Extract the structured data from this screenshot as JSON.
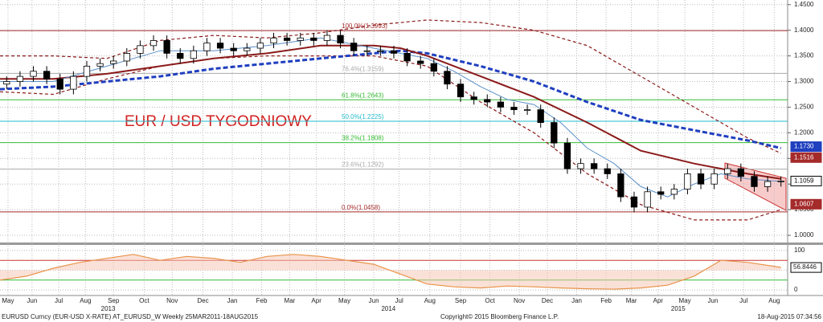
{
  "chart_data": {
    "type": "candlestick",
    "annotation": "EUR / USD TYGODNIOWY",
    "grid": true,
    "xlim": [
      0,
      59
    ],
    "xticks": [
      {
        "value": 0.6,
        "label": "May"
      },
      {
        "value": 2.4,
        "label": "Jun"
      },
      {
        "value": 4.4,
        "label": "Jul"
      },
      {
        "value": 6.4,
        "label": "Aug"
      },
      {
        "value": 8.5,
        "label": "Sep"
      },
      {
        "value": 10.8,
        "label": "Oct"
      },
      {
        "value": 12.9,
        "label": "Nov"
      },
      {
        "value": 15.2,
        "label": "Dec"
      },
      {
        "value": 17.4,
        "label": "Jan"
      },
      {
        "value": 19.6,
        "label": "Feb"
      },
      {
        "value": 21.7,
        "label": "Mar"
      },
      {
        "value": 23.7,
        "label": "Apr"
      },
      {
        "value": 25.8,
        "label": "May"
      },
      {
        "value": 28.0,
        "label": "Jun"
      },
      {
        "value": 29.9,
        "label": "Jul"
      },
      {
        "value": 32.2,
        "label": "Aug"
      },
      {
        "value": 34.5,
        "label": "Sep"
      },
      {
        "value": 36.7,
        "label": "Oct"
      },
      {
        "value": 38.9,
        "label": "Nov"
      },
      {
        "value": 41.0,
        "label": "Dec"
      },
      {
        "value": 43.2,
        "label": "Jan"
      },
      {
        "value": 45.4,
        "label": "Feb"
      },
      {
        "value": 47.3,
        "label": "Mar"
      },
      {
        "value": 49.3,
        "label": "Apr"
      },
      {
        "value": 51.3,
        "label": "May"
      },
      {
        "value": 53.4,
        "label": "Jun"
      },
      {
        "value": 55.7,
        "label": "Jul"
      },
      {
        "value": 58.0,
        "label": "Aug"
      }
    ],
    "year_ticks": [
      {
        "value": 8.1,
        "label": "2013"
      },
      {
        "value": 29.1,
        "label": "2014"
      },
      {
        "value": 50.8,
        "label": "2015"
      }
    ],
    "ylim": [
      0.986,
      1.459
    ],
    "yticks": [
      {
        "value": 1.45,
        "label": "1.4500"
      },
      {
        "value": 1.4,
        "label": "1.4000"
      },
      {
        "value": 1.35,
        "label": "1.3500"
      },
      {
        "value": 1.3,
        "label": "1.3000"
      },
      {
        "value": 1.25,
        "label": "1.2500"
      },
      {
        "value": 1.2,
        "label": "1.2000"
      },
      {
        "value": 1.15,
        "label": "1.1500"
      },
      {
        "value": 1.1,
        "label": "1.1000"
      },
      {
        "value": 1.05,
        "label": "1.0500"
      },
      {
        "value": 1.0,
        "label": "1.0000"
      }
    ],
    "up_color": "#ffffff",
    "down_color": "#000000",
    "candles": {
      "open": [
        1.295,
        1.3,
        1.31,
        1.32,
        1.305,
        1.285,
        1.31,
        1.33,
        1.335,
        1.34,
        1.355,
        1.37,
        1.38,
        1.355,
        1.345,
        1.36,
        1.375,
        1.365,
        1.36,
        1.365,
        1.375,
        1.385,
        1.38,
        1.385,
        1.38,
        1.39,
        1.375,
        1.36,
        1.36,
        1.36,
        1.355,
        1.34,
        1.335,
        1.32,
        1.295,
        1.27,
        1.265,
        1.26,
        1.25,
        1.245,
        1.245,
        1.22,
        1.18,
        1.13,
        1.14,
        1.13,
        1.12,
        1.075,
        1.055,
        1.085,
        1.08,
        1.09,
        1.12,
        1.1,
        1.12,
        1.13,
        1.115,
        1.095,
        1.105
      ],
      "high": [
        1.31,
        1.32,
        1.33,
        1.33,
        1.315,
        1.32,
        1.34,
        1.345,
        1.35,
        1.365,
        1.38,
        1.39,
        1.39,
        1.365,
        1.37,
        1.385,
        1.385,
        1.375,
        1.375,
        1.385,
        1.395,
        1.395,
        1.395,
        1.395,
        1.4,
        1.4,
        1.385,
        1.37,
        1.37,
        1.37,
        1.365,
        1.35,
        1.345,
        1.33,
        1.305,
        1.28,
        1.275,
        1.27,
        1.26,
        1.255,
        1.255,
        1.23,
        1.19,
        1.15,
        1.15,
        1.14,
        1.13,
        1.085,
        1.095,
        1.095,
        1.1,
        1.13,
        1.13,
        1.13,
        1.14,
        1.14,
        1.125,
        1.115,
        1.115
      ],
      "low": [
        1.285,
        1.29,
        1.3,
        1.295,
        1.275,
        1.275,
        1.3,
        1.32,
        1.325,
        1.33,
        1.345,
        1.36,
        1.345,
        1.335,
        1.335,
        1.35,
        1.355,
        1.35,
        1.35,
        1.355,
        1.365,
        1.37,
        1.37,
        1.37,
        1.37,
        1.365,
        1.35,
        1.35,
        1.35,
        1.345,
        1.33,
        1.325,
        1.31,
        1.285,
        1.26,
        1.255,
        1.25,
        1.24,
        1.235,
        1.235,
        1.21,
        1.17,
        1.12,
        1.12,
        1.12,
        1.11,
        1.065,
        1.045,
        1.045,
        1.07,
        1.07,
        1.08,
        1.09,
        1.09,
        1.11,
        1.105,
        1.085,
        1.085,
        1.095
      ],
      "close": [
        1.3,
        1.31,
        1.32,
        1.305,
        1.285,
        1.31,
        1.33,
        1.335,
        1.34,
        1.355,
        1.37,
        1.38,
        1.355,
        1.345,
        1.36,
        1.375,
        1.365,
        1.36,
        1.365,
        1.375,
        1.385,
        1.38,
        1.385,
        1.38,
        1.39,
        1.375,
        1.36,
        1.36,
        1.36,
        1.355,
        1.34,
        1.335,
        1.32,
        1.295,
        1.27,
        1.265,
        1.26,
        1.25,
        1.245,
        1.245,
        1.22,
        1.18,
        1.13,
        1.14,
        1.13,
        1.12,
        1.075,
        1.055,
        1.085,
        1.08,
        1.09,
        1.12,
        1.1,
        1.12,
        1.13,
        1.115,
        1.095,
        1.105,
        1.106
      ]
    },
    "lines": [
      {
        "color": "#8b1a1a",
        "style": "dashed",
        "width": 1.2,
        "x": [
          0,
          4,
          8,
          12,
          16,
          20,
          24,
          28,
          32,
          36,
          40,
          44,
          48,
          52,
          56,
          58.5
        ],
        "values": [
          1.35,
          1.35,
          1.345,
          1.38,
          1.39,
          1.385,
          1.395,
          1.41,
          1.42,
          1.415,
          1.4,
          1.37,
          1.31,
          1.25,
          1.19,
          1.16
        ]
      },
      {
        "color": "#8b1a1a",
        "style": "dashed",
        "width": 1.2,
        "x": [
          0,
          4,
          8,
          12,
          16,
          20,
          24,
          28,
          32,
          36,
          40,
          44,
          48,
          52,
          56,
          58.5
        ],
        "values": [
          1.28,
          1.275,
          1.305,
          1.33,
          1.345,
          1.35,
          1.35,
          1.35,
          1.33,
          1.26,
          1.2,
          1.12,
          1.06,
          1.03,
          1.03,
          1.05
        ]
      },
      {
        "color": "#1f3fbf",
        "style": "dashed",
        "width": 3,
        "x": [
          0,
          4,
          8,
          12,
          16,
          20,
          24,
          28,
          30,
          32,
          36,
          40,
          44,
          48,
          52,
          56,
          58.5
        ],
        "values": [
          1.285,
          1.29,
          1.3,
          1.31,
          1.325,
          1.335,
          1.345,
          1.355,
          1.36,
          1.355,
          1.33,
          1.3,
          1.26,
          1.225,
          1.205,
          1.185,
          1.17
        ]
      },
      {
        "color": "#8b1a1a",
        "style": "solid",
        "width": 2,
        "x": [
          0,
          4,
          8,
          12,
          16,
          20,
          24,
          28,
          30,
          32,
          36,
          40,
          44,
          48,
          52,
          56,
          58.5
        ],
        "values": [
          1.305,
          1.305,
          1.315,
          1.33,
          1.345,
          1.355,
          1.37,
          1.37,
          1.365,
          1.35,
          1.31,
          1.27,
          1.22,
          1.165,
          1.14,
          1.12,
          1.11
        ]
      },
      {
        "color": "#5a8fc8",
        "style": "solid",
        "width": 1,
        "x": [
          0,
          4,
          8,
          12,
          16,
          20,
          24,
          28,
          32,
          34,
          36,
          38,
          40,
          42,
          44,
          46,
          48,
          50,
          52,
          54,
          56,
          58.5
        ],
        "values": [
          1.3,
          1.3,
          1.33,
          1.36,
          1.36,
          1.37,
          1.385,
          1.365,
          1.345,
          1.32,
          1.29,
          1.265,
          1.255,
          1.22,
          1.17,
          1.14,
          1.095,
          1.075,
          1.1,
          1.12,
          1.11,
          1.105
        ]
      }
    ],
    "fib_levels": [
      {
        "value": 1.3993,
        "label": "100.0%(1.3993)",
        "color": "#a52a2a"
      },
      {
        "value": 1.3159,
        "label": "76.4%(1.3159)",
        "color": "#aaaaaa"
      },
      {
        "value": 1.2643,
        "label": "61.8%(1.2643)",
        "color": "#33bb33"
      },
      {
        "value": 1.2225,
        "label": "50.0%(1.2225)",
        "color": "#22bbcc"
      },
      {
        "value": 1.1808,
        "label": "38.2%(1.1808)",
        "color": "#33bb33"
      },
      {
        "value": 1.1292,
        "label": "23.6%(1.1292)",
        "color": "#aaaaaa"
      },
      {
        "value": 1.0458,
        "label": "0.0%(1.0458)",
        "color": "#a52a2a"
      }
    ],
    "price_tags": [
      {
        "value": 1.173,
        "label": "1.1730",
        "color": "#1f3fbf"
      },
      {
        "value": 1.1516,
        "label": "1.1516",
        "color": "#a52a2a"
      },
      {
        "value": 1.1059,
        "label": "1.1059",
        "color": "#ffffff"
      },
      {
        "value": 1.0607,
        "label": "1.0607",
        "color": "#a52a2a"
      }
    ],
    "oscillator": {
      "ylim": [
        -12,
        114
      ],
      "yticks": [
        100,
        50,
        0
      ],
      "levels": [
        {
          "value": 75,
          "color": "#cc3333"
        },
        {
          "value": 25,
          "color": "#33bb33"
        }
      ],
      "color": "#e8934a",
      "x": [
        0,
        2,
        4,
        6,
        8,
        10,
        12,
        14,
        16,
        18,
        20,
        22,
        24,
        26,
        28,
        30,
        32,
        34,
        36,
        38,
        40,
        42,
        44,
        46,
        48,
        50,
        52,
        54,
        56,
        58.5
      ],
      "values": [
        25,
        35,
        55,
        70,
        80,
        90,
        75,
        85,
        80,
        70,
        85,
        90,
        85,
        75,
        65,
        40,
        15,
        8,
        5,
        10,
        8,
        5,
        3,
        2,
        5,
        12,
        35,
        75,
        70,
        57
      ],
      "tag": 56.8446
    },
    "footer": {
      "left": "EURUSD Curncy (EUR-USD X-RATE) AT_EURUSD_W  Weekly 25MAR2011-18AUG2015",
      "center": "Copyright© 2015 Bloomberg Finance L.P.",
      "right": "18-Aug-2015 07:34:56"
    }
  }
}
